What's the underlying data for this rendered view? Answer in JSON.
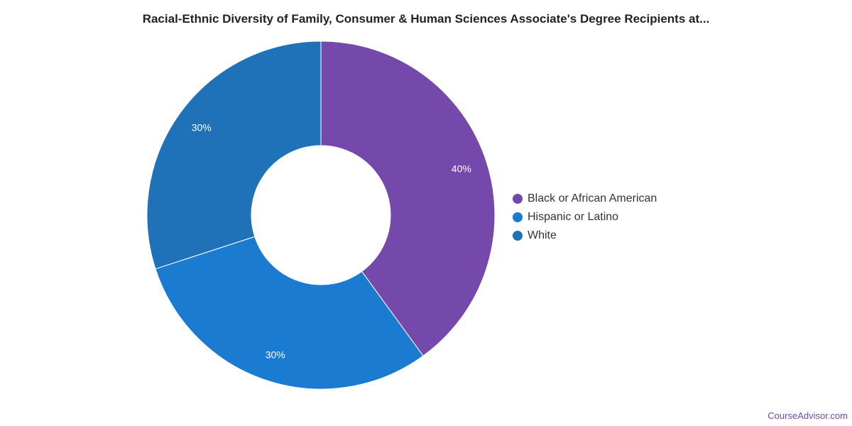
{
  "chart_data": {
    "type": "pie",
    "donut": true,
    "title": "Racial-Ethnic Diversity of Family, Consumer & Human Sciences Associate's Degree Recipients at...",
    "categories": [
      "Black or African American",
      "Hispanic or Latino",
      "White"
    ],
    "values": [
      40,
      30,
      30
    ],
    "data_labels": [
      "40%",
      "30%",
      "30%"
    ],
    "colors": [
      "#7549ac",
      "#1a7bd1",
      "#1f72b8"
    ],
    "legend_position": "right"
  },
  "footer": {
    "credit": "CourseAdvisor.com"
  }
}
